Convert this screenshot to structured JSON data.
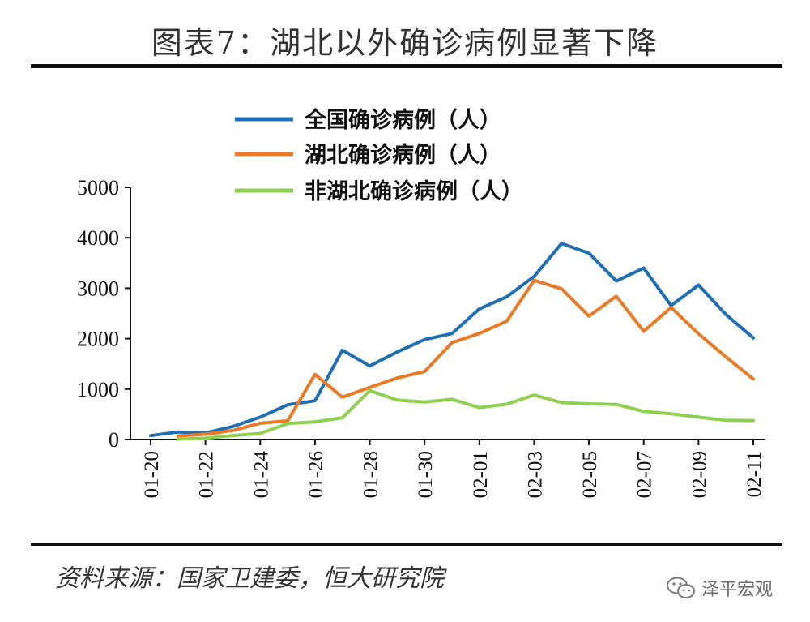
{
  "figure": {
    "title": "图表7：湖北以外确诊病例显著下降",
    "source": "资料来源：国家卫建委，恒大研究院",
    "watermark": "泽平宏观",
    "watermark_icon": "wechat-icon"
  },
  "chart_data": {
    "type": "line",
    "title": "",
    "xlabel": "",
    "ylabel": "",
    "ylim": [
      0,
      5000
    ],
    "yticks": [
      0,
      1000,
      2000,
      3000,
      4000,
      5000
    ],
    "x": [
      "01-20",
      "01-21",
      "01-22",
      "01-23",
      "01-24",
      "01-25",
      "01-26",
      "01-27",
      "01-28",
      "01-29",
      "01-30",
      "01-31",
      "02-01",
      "02-02",
      "02-03",
      "02-04",
      "02-05",
      "02-06",
      "02-07",
      "02-08",
      "02-09",
      "02-10",
      "02-11"
    ],
    "xtick_labels": [
      "01-20",
      "01-22",
      "01-24",
      "01-26",
      "01-28",
      "01-30",
      "02-01",
      "02-03",
      "02-05",
      "02-07",
      "02-09",
      "02-11"
    ],
    "legend_position": "top",
    "grid": false,
    "series": [
      {
        "name": "全国确诊病例（人）",
        "color": "#1f6fb4",
        "values": [
          77,
          149,
          131,
          259,
          444,
          688,
          769,
          1771,
          1459,
          1737,
          1982,
          2102,
          2590,
          2829,
          3235,
          3887,
          3694,
          3143,
          3399,
          2656,
          3062,
          2478,
          2015
        ]
      },
      {
        "name": "湖北确诊病例（人）",
        "color": "#ea7a25",
        "values": [
          null,
          72,
          105,
          180,
          323,
          371,
          1291,
          840,
          1032,
          1220,
          1347,
          1921,
          2103,
          2345,
          3156,
          2987,
          2447,
          2841,
          2147,
          2618,
          2097,
          1638,
          1200
        ]
      },
      {
        "name": "非湖北确诊病例（人）",
        "color": "#8dd14f",
        "values": [
          null,
          8,
          26,
          79,
          121,
          317,
          350,
          431,
          969,
          782,
          742,
          798,
          634,
          701,
          882,
          731,
          707,
          696,
          558,
          509,
          444,
          381,
          377
        ]
      }
    ]
  }
}
